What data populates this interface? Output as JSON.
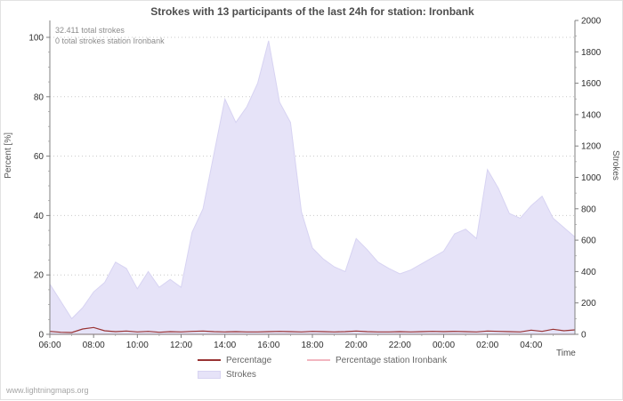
{
  "page": {
    "watermark": "www.lightningmaps.org"
  },
  "chart_data": {
    "type": "area",
    "title": "Strokes with 13 participants of the last 24h for station: Ironbank",
    "annotations": [
      "32.411 total strokes",
      "0 total strokes station Ironbank"
    ],
    "x_axis": {
      "label": "Time",
      "ticks": [
        [
          0,
          "06:00"
        ],
        [
          4,
          "08:00"
        ],
        [
          8,
          "10:00"
        ],
        [
          12,
          "12:00"
        ],
        [
          16,
          "14:00"
        ],
        [
          20,
          "16:00"
        ],
        [
          24,
          "18:00"
        ],
        [
          28,
          "20:00"
        ],
        [
          32,
          "22:00"
        ],
        [
          36,
          "00:00"
        ],
        [
          40,
          "02:00"
        ],
        [
          44,
          "04:00"
        ]
      ],
      "interval_minutes": 30,
      "span_hours": 24
    },
    "left_axis": {
      "label": "Percent  [%]",
      "min": 0,
      "max": 100,
      "ticks": [
        0,
        20,
        40,
        60,
        80,
        100
      ]
    },
    "right_axis": {
      "label": "Strokes",
      "min": 0,
      "max": 2000,
      "ticks": [
        0,
        200,
        400,
        600,
        800,
        1000,
        1200,
        1400,
        1600,
        1800,
        2000
      ]
    },
    "grid": "horizontal-dotted",
    "legend_position": "bottom",
    "series": [
      {
        "name": "Percentage",
        "type": "line",
        "axis": "left",
        "color": "#993333",
        "values": [
          1.0,
          0.7,
          0.6,
          1.8,
          2.3,
          1.2,
          0.9,
          1.1,
          0.8,
          1.0,
          0.7,
          0.9,
          0.8,
          1.0,
          1.1,
          0.9,
          0.8,
          0.9,
          0.8,
          0.8,
          0.9,
          1.0,
          0.9,
          0.8,
          1.0,
          0.9,
          0.8,
          0.9,
          1.1,
          0.9,
          0.8,
          0.8,
          0.9,
          0.8,
          0.9,
          1.0,
          0.9,
          1.0,
          0.9,
          0.8,
          1.1,
          1.0,
          0.9,
          0.8,
          1.4,
          1.0,
          1.7,
          1.2,
          1.5
        ]
      },
      {
        "name": "Percentage station Ironbank",
        "type": "line",
        "axis": "left",
        "color": "#f2b6c0",
        "values": [
          0,
          0,
          0,
          0,
          0,
          0,
          0,
          0,
          0,
          0,
          0,
          0,
          0,
          0,
          0,
          0,
          0,
          0,
          0,
          0,
          0,
          0,
          0,
          0,
          0,
          0,
          0,
          0,
          0,
          0,
          0,
          0,
          0,
          0,
          0,
          0,
          0,
          0,
          0,
          0,
          0,
          0,
          0,
          0,
          0,
          0,
          0,
          0,
          0
        ]
      },
      {
        "name": "Strokes",
        "type": "area",
        "axis": "right",
        "color": "#e6e3f8",
        "values": [
          320,
          210,
          100,
          170,
          270,
          330,
          460,
          420,
          290,
          400,
          300,
          350,
          300,
          650,
          800,
          1150,
          1500,
          1350,
          1450,
          1600,
          1870,
          1480,
          1350,
          780,
          550,
          480,
          430,
          400,
          610,
          540,
          460,
          420,
          385,
          410,
          450,
          490,
          530,
          640,
          670,
          610,
          1050,
          930,
          770,
          740,
          820,
          880,
          740,
          680,
          620
        ]
      }
    ]
  }
}
